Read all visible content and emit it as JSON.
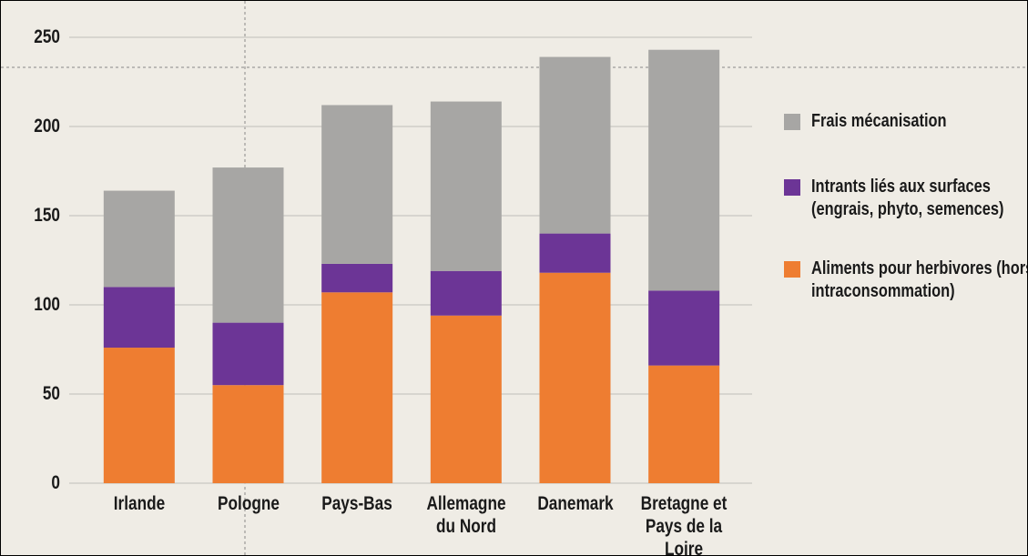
{
  "chart_data": {
    "type": "stacked_bar",
    "categories": [
      "Irlande",
      "Pologne",
      "Pays-Bas",
      "Allemagne du Nord",
      "Danemark",
      "Bretagne et Pays de la Loire"
    ],
    "series": [
      {
        "name": "Frais mécanisation",
        "color": "#a7a6a4",
        "values": [
          54,
          87,
          89,
          95,
          99,
          135
        ]
      },
      {
        "name": "Intrants liés aux surfaces (engrais, phyto, semences)",
        "color": "#6c3596",
        "values": [
          34,
          35,
          16,
          25,
          22,
          42
        ]
      },
      {
        "name": "Aliments pour herbivores (hors intraconsommation)",
        "color": "#ee7d31",
        "values": [
          76,
          55,
          107,
          94,
          118,
          66
        ]
      }
    ],
    "ylim": [
      0,
      250
    ],
    "yticks": [
      0,
      50,
      100,
      150,
      200,
      250
    ],
    "grid": true
  }
}
